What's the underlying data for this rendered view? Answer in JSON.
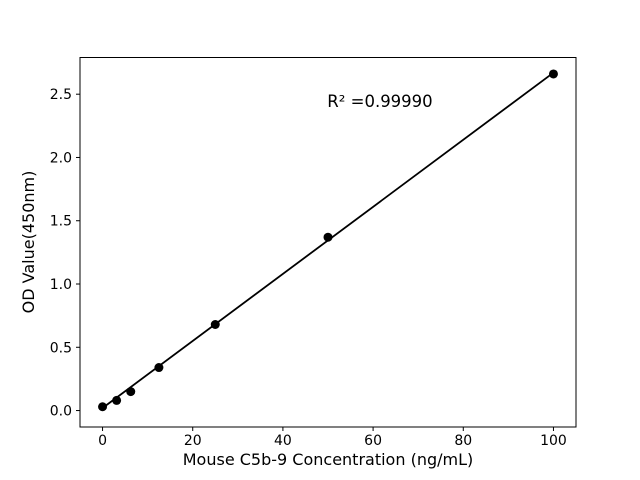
{
  "figure": {
    "background": "#ffffff"
  },
  "chart_data": {
    "type": "scatter",
    "title": "",
    "xlabel": "Mouse C5b-9 Concentration (ng/mL)",
    "ylabel": "OD Value(450nm)",
    "x": [
      0,
      3.125,
      6.25,
      12.5,
      25,
      50,
      100
    ],
    "y": [
      0.03,
      0.08,
      0.15,
      0.34,
      0.68,
      1.37,
      2.66
    ],
    "fit_line": {
      "x": [
        0,
        100
      ],
      "y": [
        0.02,
        2.67
      ]
    },
    "annotation": {
      "text": "R² =0.99990"
    },
    "xticks": [
      "0",
      "20",
      "40",
      "60",
      "80",
      "100"
    ],
    "yticks": [
      "0.0",
      "0.5",
      "1.0",
      "1.5",
      "2.0",
      "2.5"
    ],
    "xlim": [
      -5,
      105
    ],
    "ylim": [
      -0.13,
      2.79
    ],
    "grid": false,
    "legend": null,
    "marker_color": "#000000",
    "line_color": "#000000",
    "axis_color": "#000000",
    "background_color": "#ffffff"
  }
}
